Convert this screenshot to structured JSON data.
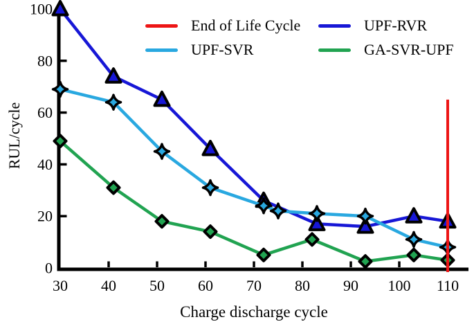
{
  "chart_data": {
    "type": "line",
    "title": "",
    "xlabel": "Charge discharge cycle",
    "ylabel": "RUL/cycle",
    "xlim": [
      30,
      114
    ],
    "ylim": [
      0,
      104
    ],
    "x_ticks": [
      30,
      40,
      50,
      60,
      70,
      80,
      90,
      100,
      110
    ],
    "y_ticks": [
      0,
      20,
      40,
      60,
      80,
      100
    ],
    "grid": false,
    "legend_position": "top-center, 2 columns, no frame",
    "axis_color": "#000000",
    "series": [
      {
        "name": "End of Life Cycle",
        "type": "vline",
        "color": "#ed1515",
        "marker": "none",
        "x": 110,
        "y_range": [
          0,
          65
        ]
      },
      {
        "name": "UPF-RVR",
        "type": "line",
        "color": "#1717d6",
        "marker": "triangle",
        "points": [
          [
            30,
            100
          ],
          [
            41,
            74
          ],
          [
            51,
            65
          ],
          [
            61,
            46
          ],
          [
            72,
            26
          ],
          [
            83,
            17
          ],
          [
            93,
            16
          ],
          [
            103,
            20
          ],
          [
            110,
            18
          ]
        ]
      },
      {
        "name": "UPF-SVR",
        "type": "line",
        "color": "#29a8e0",
        "marker": "star4",
        "points": [
          [
            30,
            69
          ],
          [
            41,
            64
          ],
          [
            51,
            45
          ],
          [
            61,
            31
          ],
          [
            72,
            24
          ],
          [
            75,
            22
          ],
          [
            83,
            21
          ],
          [
            93,
            20
          ],
          [
            103,
            11
          ],
          [
            110,
            8
          ]
        ]
      },
      {
        "name": "GA-SVR-UPF",
        "type": "line",
        "color": "#21a351",
        "marker": "diamond",
        "points": [
          [
            30,
            49
          ],
          [
            41,
            31
          ],
          [
            51,
            18
          ],
          [
            61,
            14
          ],
          [
            72,
            5
          ],
          [
            82,
            11
          ],
          [
            93,
            2.5
          ],
          [
            103,
            5
          ],
          [
            110,
            3
          ]
        ]
      }
    ],
    "legend": [
      {
        "label": "End of Life Cycle",
        "color": "#ed1515"
      },
      {
        "label": "UPF-RVR",
        "color": "#1717d6"
      },
      {
        "label": "UPF-SVR",
        "color": "#29a8e0"
      },
      {
        "label": "GA-SVR-UPF",
        "color": "#21a351"
      }
    ]
  }
}
